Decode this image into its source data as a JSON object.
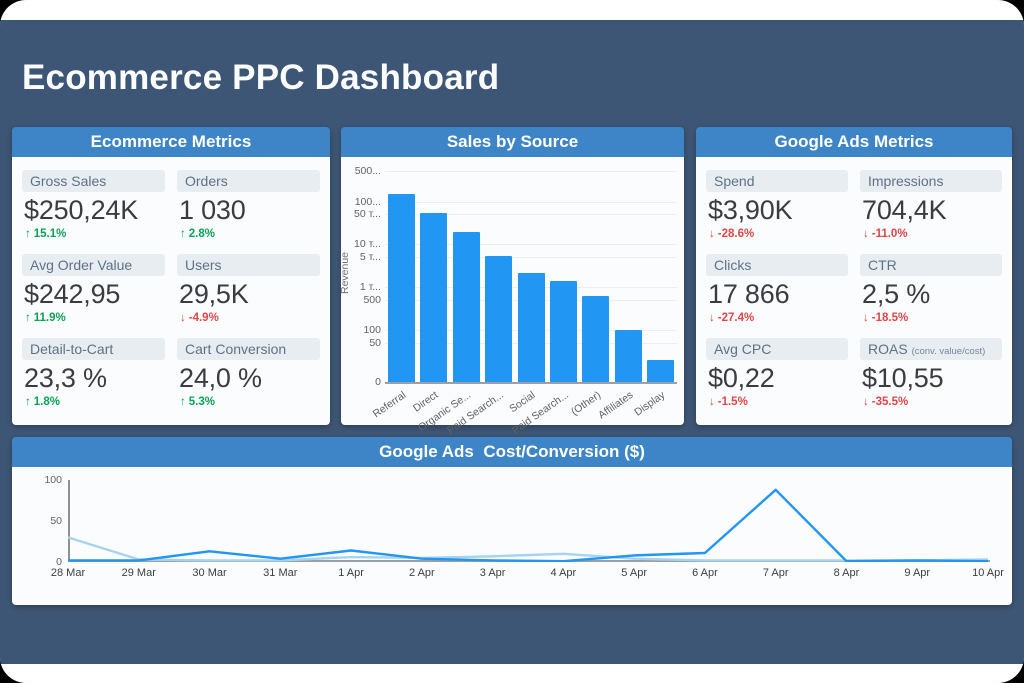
{
  "page": {
    "title": "Ecommerce PPC Dashboard"
  },
  "colors": {
    "outer_background": "#000000",
    "frame_background": "#ffffff",
    "dashboard_background": "#3e5675",
    "panel_header_blue": "#3d85c6",
    "panel_body_background": "#fbfcfd",
    "tile_label_background": "#e8edf2",
    "positive_green": "#0aa157",
    "negative_red": "#e04545",
    "bar_blue": "#2196f3",
    "line_current_blue": "#2196f3",
    "line_previous_blue": "#a7d3f0"
  },
  "panels": {
    "ecommerce": {
      "title": "Ecommerce Metrics",
      "tiles": [
        {
          "label": "Gross Sales",
          "value": "$250,24K",
          "delta": "15.1%",
          "direction": "up"
        },
        {
          "label": "Orders",
          "value": "1 030",
          "delta": "2.8%",
          "direction": "up"
        },
        {
          "label": "Avg Order Value",
          "value": "$242,95",
          "delta": "11.9%",
          "direction": "up"
        },
        {
          "label": "Users",
          "value": "29,5K",
          "delta": "-4.9%",
          "direction": "down"
        },
        {
          "label": "Detail-to-Cart",
          "value": "23,3 %",
          "delta": "1.8%",
          "direction": "up"
        },
        {
          "label": "Cart Conversion",
          "value": "24,0 %",
          "delta": "5.3%",
          "direction": "up"
        }
      ]
    },
    "google": {
      "title": "Google Ads Metrics",
      "tiles": [
        {
          "label": "Spend",
          "value": "$3,90K",
          "delta": "-28.6%",
          "direction": "down"
        },
        {
          "label": "Impressions",
          "value": "704,4K",
          "delta": "-11.0%",
          "direction": "down"
        },
        {
          "label": "Clicks",
          "value": "17 866",
          "delta": "-27.4%",
          "direction": "down"
        },
        {
          "label": "CTR",
          "value": "2,5 %",
          "delta": "-18.5%",
          "direction": "down"
        },
        {
          "label": "Avg CPC",
          "value": "$0,22",
          "delta": "-1.5%",
          "direction": "down"
        },
        {
          "label": "ROAS",
          "label_suffix": "(conv. value/cost)",
          "value": "$10,55",
          "delta": "-35.5%",
          "direction": "down"
        }
      ]
    }
  },
  "chart_data": [
    {
      "id": "sales_by_source",
      "type": "bar",
      "title": "Sales by Source",
      "xlabel": "",
      "ylabel": "Revenue",
      "yscale": "log",
      "grid": true,
      "legend": "none",
      "categories": [
        "Referral",
        "Direct",
        "Organic Se...",
        "Paid Search...",
        "Social",
        "Paid Search...",
        "(Other)",
        "Affiliates",
        "Display"
      ],
      "values": [
        150000,
        55000,
        20000,
        5500,
        2200,
        1400,
        650,
        100,
        20
      ],
      "y_ticks": [
        {
          "label": "500...",
          "value": 500000
        },
        {
          "label": "100...",
          "value": 100000
        },
        {
          "label": "50 т...",
          "value": 50000
        },
        {
          "label": "10 т...",
          "value": 10000
        },
        {
          "label": "5 т...",
          "value": 5000
        },
        {
          "label": "1 т...",
          "value": 1000
        },
        {
          "label": "500",
          "value": 500
        },
        {
          "label": "100",
          "value": 100
        },
        {
          "label": "50",
          "value": 50
        },
        {
          "label": "0",
          "value": 0
        }
      ],
      "bar_color": "#2196f3"
    },
    {
      "id": "cost_per_conversion",
      "type": "line",
      "title": "Google Ads  Cost/Conversion ($)",
      "xlabel": "",
      "ylabel": "",
      "grid": false,
      "legend": "none",
      "ylim": [
        0,
        100
      ],
      "y_ticks": [
        0,
        50,
        100
      ],
      "x": [
        "28 Mar",
        "29 Mar",
        "30 Mar",
        "31 Mar",
        "1 Apr",
        "2 Apr",
        "3 Apr",
        "4 Apr",
        "5 Apr",
        "6 Apr",
        "7 Apr",
        "8 Apr",
        "9 Apr",
        "10 Apr"
      ],
      "series": [
        {
          "name": "cost-per-conversion-current",
          "color": "#2196f3",
          "values": [
            2,
            2,
            13,
            4,
            14,
            4,
            2,
            1,
            8,
            11,
            88,
            1,
            2,
            1
          ]
        },
        {
          "name": "cost-per-conversion-previous",
          "color": "#a7d3f0",
          "values": [
            30,
            3,
            2,
            2,
            6,
            5,
            7,
            10,
            4,
            2,
            2,
            2,
            2,
            3
          ]
        }
      ]
    }
  ]
}
